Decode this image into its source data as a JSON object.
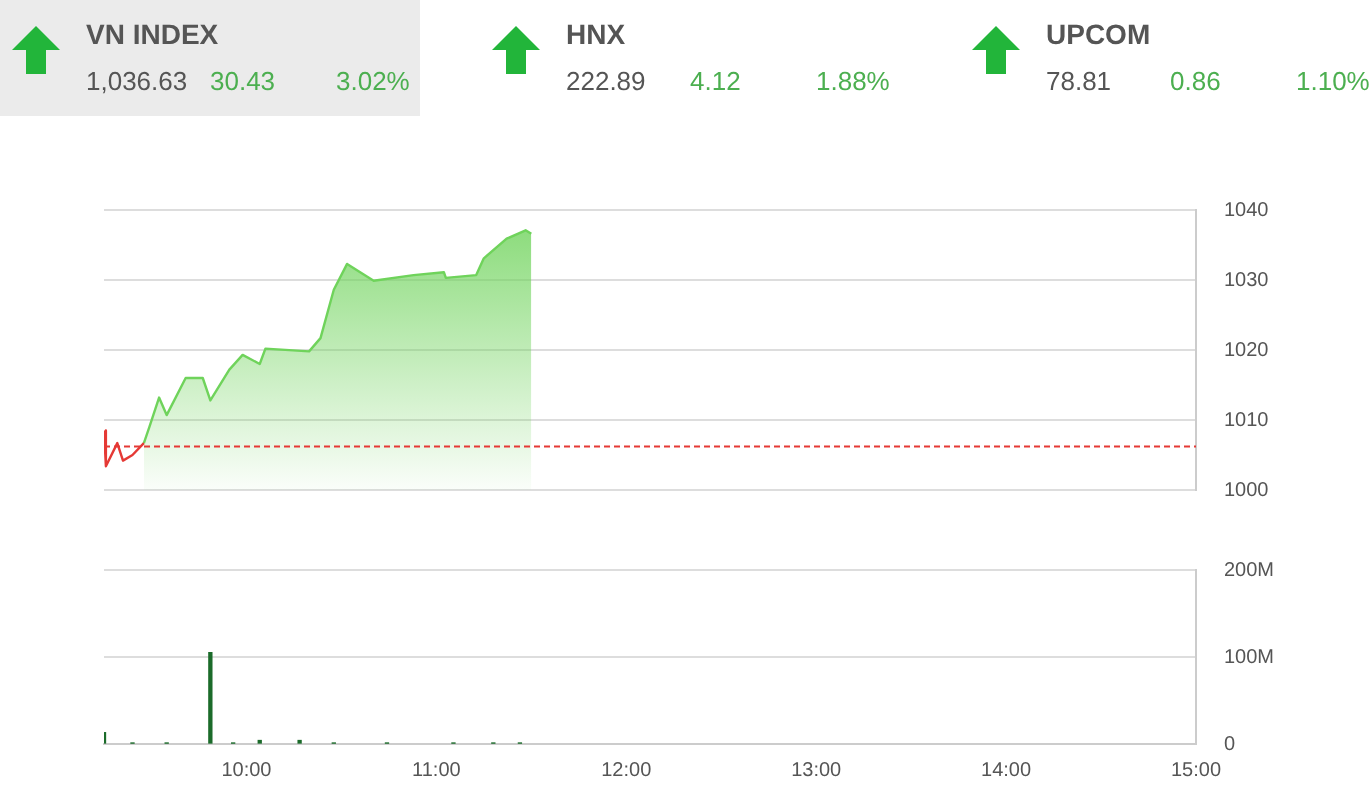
{
  "chart_data": [
    {
      "type": "other",
      "annotations": [
        "VN INDEX",
        "1,036.63",
        "30.43",
        "3.02%",
        "HNX",
        "222.89",
        "4.12",
        "1.88%",
        "UPCOM",
        "78.81",
        "0.86",
        "1.10%"
      ]
    },
    {
      "type": "area",
      "series": [
        {
          "color": "#6fd35b",
          "x": [
            9.46,
            9.49,
            9.54,
            9.58,
            9.68,
            9.77,
            9.81,
            9.91,
            9.98,
            10.07,
            10.1,
            10.33,
            10.39,
            10.46,
            10.53,
            10.67,
            10.88,
            11.04,
            11.05,
            11.21,
            11.25,
            11.37,
            11.47,
            11.5
          ],
          "values": [
            1006.7,
            1009.1,
            1013.2,
            1010.7,
            1016,
            1016,
            1012.8,
            1017.2,
            1019.3,
            1018,
            1020.2,
            1019.8,
            1021.7,
            1028.6,
            1032.3,
            1029.9,
            1030.7,
            1031.1,
            1030.3,
            1030.7,
            1033.1,
            1035.9,
            1037.1,
            1036.6
          ]
        },
        {
          "type": "line",
          "color": "#e53935",
          "x": [
            9.25,
            9.26,
            9.32,
            9.35,
            9.4,
            9.46
          ],
          "values": [
            1008.5,
            1003.4,
            1006.7,
            1004.2,
            1005,
            1006.7
          ]
        }
      ],
      "xlim": [
        9.25,
        15
      ],
      "ylim": [
        1000,
        1040
      ],
      "yticks": [
        1000,
        1010,
        1020,
        1030,
        1040
      ],
      "tick_labels": "y",
      "grid": "y",
      "legend": false,
      "ref_lines": [
        {
          "axis": "y",
          "value": 1006.2,
          "color": "#e53935",
          "line_style": "dashed"
        }
      ]
    },
    {
      "type": "bar",
      "x": [
        9.25,
        9.4,
        9.58,
        9.81,
        9.93,
        10.07,
        10.28,
        10.46,
        10.74,
        11.09,
        11.3,
        11.44
      ],
      "series": [
        {
          "color": "#1b6b2a",
          "values": [
            13,
            1,
            1,
            105,
            1,
            4,
            4,
            1,
            1,
            1,
            1,
            1
          ]
        }
      ],
      "xlim": [
        9.25,
        15
      ],
      "xticks": [
        {
          "value": 10,
          "label": "10:00"
        },
        {
          "value": 11,
          "label": "11:00"
        },
        {
          "value": 12,
          "label": "12:00"
        },
        {
          "value": 13,
          "label": "13:00"
        },
        {
          "value": 14,
          "label": "14:00"
        },
        {
          "value": 15,
          "label": "15:00"
        }
      ],
      "ylim": [
        0,
        200
      ],
      "yticks": [
        {
          "value": 0,
          "label": "0"
        },
        {
          "value": 100,
          "label": "100M"
        },
        {
          "value": 200,
          "label": "200M"
        }
      ],
      "grid": "y",
      "legend": false
    }
  ]
}
